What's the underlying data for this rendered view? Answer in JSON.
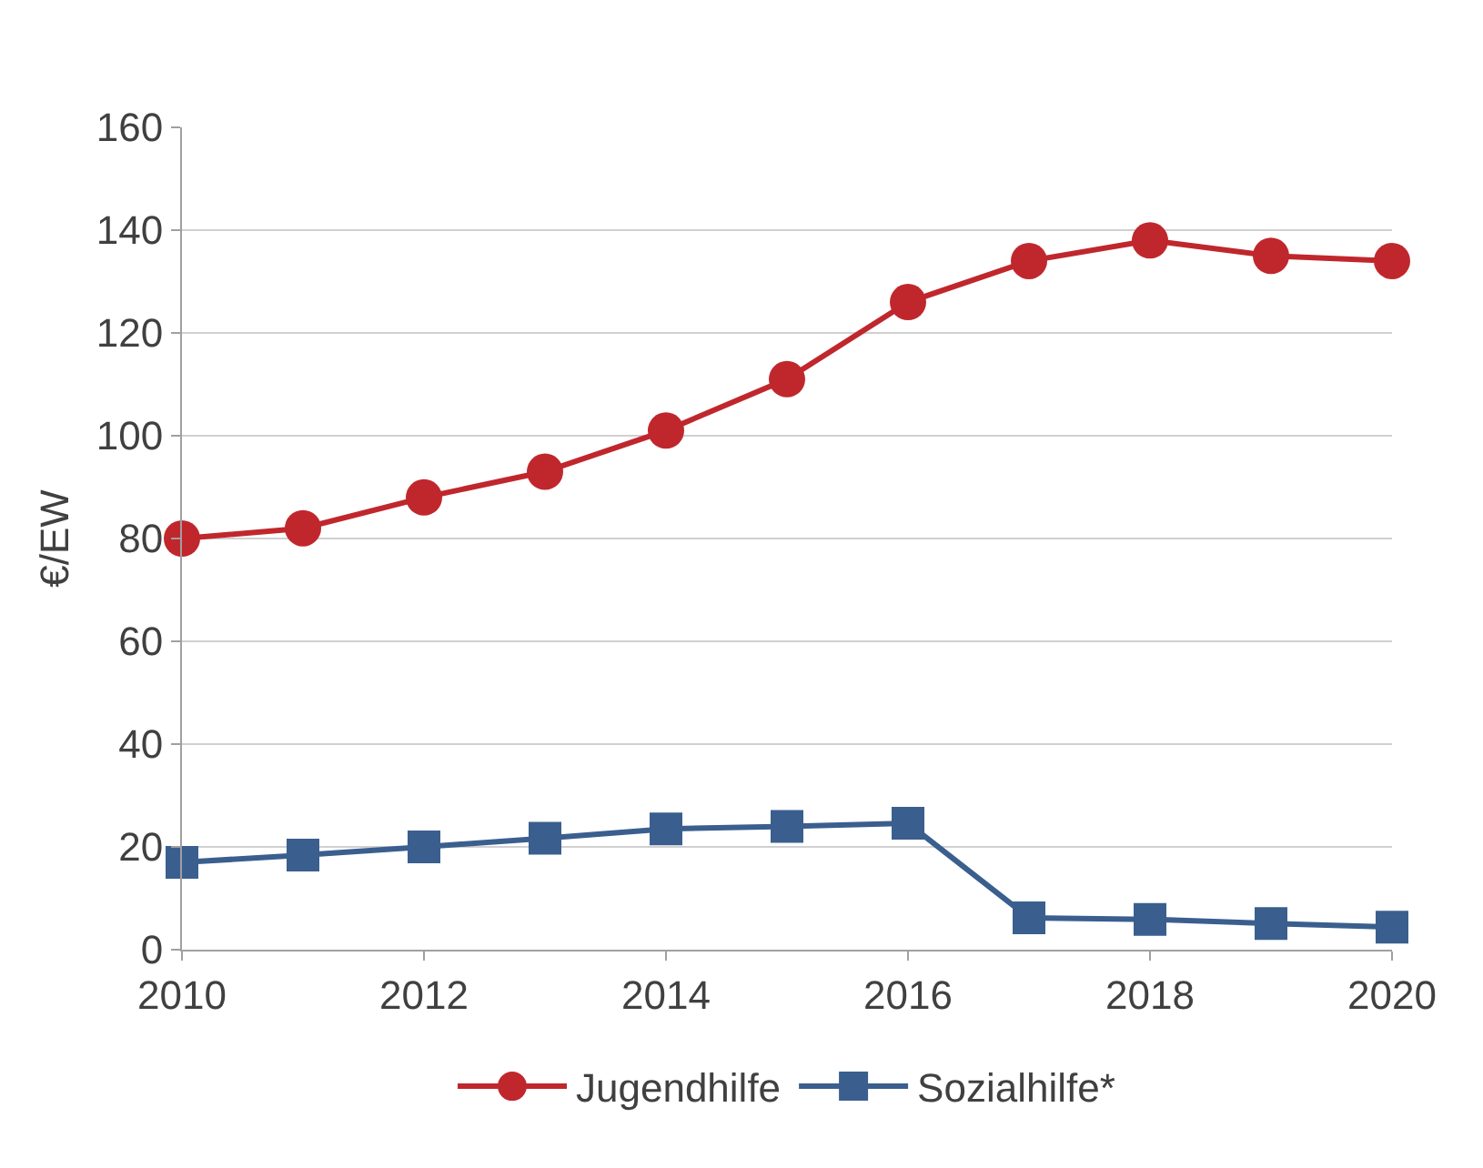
{
  "chart_data": {
    "type": "line",
    "ylabel": "€/EW",
    "x": [
      2010,
      2011,
      2012,
      2013,
      2014,
      2015,
      2016,
      2017,
      2018,
      2019,
      2020
    ],
    "series": [
      {
        "name": "Jugendhilfe",
        "color": "#c0272d",
        "marker": "circle",
        "values": [
          80,
          82,
          88,
          93,
          101,
          111,
          126,
          134,
          138,
          135,
          134
        ]
      },
      {
        "name": "Sozialhilfe*",
        "color": "#3a5f8e",
        "marker": "square",
        "values": [
          17,
          18.4,
          20,
          21.7,
          23.5,
          24,
          24.6,
          6.2,
          5.9,
          5.1,
          4.4
        ]
      }
    ],
    "xlim": [
      2010,
      2020
    ],
    "xticks": [
      2010,
      2012,
      2014,
      2016,
      2018,
      2020
    ],
    "ylim": [
      0,
      160
    ],
    "yticks": [
      0,
      20,
      40,
      60,
      80,
      100,
      120,
      140,
      160
    ],
    "grid": "y",
    "legend": "bottom",
    "line_style": "solid"
  }
}
